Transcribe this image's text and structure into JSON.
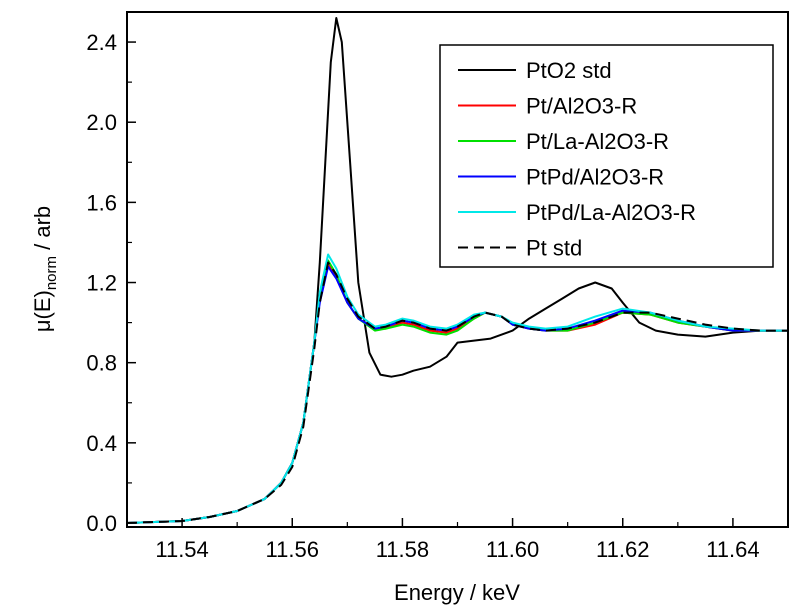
{
  "chart_data": {
    "type": "line",
    "xlabel": "Energy / keV",
    "ylabel_main": "μ(E)",
    "ylabel_sub": "norm",
    "ylabel_tail": " / arb",
    "xlim": [
      11.53,
      11.65
    ],
    "ylim": [
      -0.02,
      2.55
    ],
    "x_ticks": [
      11.54,
      11.56,
      11.58,
      11.6,
      11.62,
      11.64
    ],
    "x_tick_labels": [
      "11.54",
      "11.56",
      "11.58",
      "11.60",
      "11.62",
      "11.64"
    ],
    "y_ticks": [
      0.0,
      0.4,
      0.8,
      1.2,
      1.6,
      2.0,
      2.4
    ],
    "y_tick_labels": [
      "0.0",
      "0.4",
      "0.8",
      "1.2",
      "1.6",
      "2.0",
      "2.4"
    ],
    "legend_position": "top-right",
    "grid": false,
    "series": [
      {
        "name": "PtO2 std",
        "color": "#000000",
        "dash": "solid",
        "points": [
          [
            11.53,
            0.0
          ],
          [
            11.54,
            0.01
          ],
          [
            11.545,
            0.03
          ],
          [
            11.55,
            0.06
          ],
          [
            11.555,
            0.12
          ],
          [
            11.558,
            0.2
          ],
          [
            11.56,
            0.3
          ],
          [
            11.562,
            0.5
          ],
          [
            11.564,
            0.9
          ],
          [
            11.565,
            1.3
          ],
          [
            11.566,
            1.8
          ],
          [
            11.567,
            2.3
          ],
          [
            11.568,
            2.52
          ],
          [
            11.569,
            2.4
          ],
          [
            11.5705,
            1.8
          ],
          [
            11.572,
            1.2
          ],
          [
            11.574,
            0.85
          ],
          [
            11.576,
            0.74
          ],
          [
            11.578,
            0.73
          ],
          [
            11.58,
            0.74
          ],
          [
            11.582,
            0.76
          ],
          [
            11.585,
            0.78
          ],
          [
            11.588,
            0.83
          ],
          [
            11.59,
            0.9
          ],
          [
            11.593,
            0.91
          ],
          [
            11.596,
            0.92
          ],
          [
            11.6,
            0.96
          ],
          [
            11.603,
            1.02
          ],
          [
            11.606,
            1.07
          ],
          [
            11.609,
            1.12
          ],
          [
            11.612,
            1.17
          ],
          [
            11.615,
            1.2
          ],
          [
            11.618,
            1.17
          ],
          [
            11.62,
            1.1
          ],
          [
            11.623,
            1.0
          ],
          [
            11.626,
            0.96
          ],
          [
            11.63,
            0.94
          ],
          [
            11.635,
            0.93
          ],
          [
            11.64,
            0.95
          ],
          [
            11.645,
            0.96
          ],
          [
            11.65,
            0.96
          ]
        ]
      },
      {
        "name": "Pt/Al2O3-R",
        "color": "#ff0000",
        "dash": "solid",
        "points": [
          [
            11.53,
            0.0
          ],
          [
            11.54,
            0.01
          ],
          [
            11.545,
            0.03
          ],
          [
            11.55,
            0.06
          ],
          [
            11.555,
            0.12
          ],
          [
            11.558,
            0.2
          ],
          [
            11.56,
            0.3
          ],
          [
            11.562,
            0.5
          ],
          [
            11.564,
            0.9
          ],
          [
            11.565,
            1.12
          ],
          [
            11.5665,
            1.3
          ],
          [
            11.568,
            1.23
          ],
          [
            11.57,
            1.1
          ],
          [
            11.572,
            1.02
          ],
          [
            11.575,
            0.97
          ],
          [
            11.577,
            0.97
          ],
          [
            11.58,
            1.0
          ],
          [
            11.582,
            0.99
          ],
          [
            11.585,
            0.96
          ],
          [
            11.588,
            0.95
          ],
          [
            11.59,
            0.97
          ],
          [
            11.593,
            1.02
          ],
          [
            11.595,
            1.05
          ],
          [
            11.598,
            1.03
          ],
          [
            11.6,
            0.99
          ],
          [
            11.603,
            0.97
          ],
          [
            11.606,
            0.96
          ],
          [
            11.61,
            0.96
          ],
          [
            11.615,
            0.99
          ],
          [
            11.62,
            1.05
          ],
          [
            11.625,
            1.04
          ],
          [
            11.63,
            1.0
          ],
          [
            11.635,
            0.98
          ],
          [
            11.64,
            0.96
          ],
          [
            11.645,
            0.96
          ],
          [
            11.65,
            0.96
          ]
        ]
      },
      {
        "name": "Pt/La-Al2O3-R",
        "color": "#00e000",
        "dash": "solid",
        "points": [
          [
            11.53,
            0.0
          ],
          [
            11.54,
            0.01
          ],
          [
            11.545,
            0.03
          ],
          [
            11.55,
            0.06
          ],
          [
            11.555,
            0.12
          ],
          [
            11.558,
            0.2
          ],
          [
            11.56,
            0.3
          ],
          [
            11.562,
            0.5
          ],
          [
            11.564,
            0.9
          ],
          [
            11.565,
            1.12
          ],
          [
            11.5665,
            1.31
          ],
          [
            11.568,
            1.24
          ],
          [
            11.57,
            1.1
          ],
          [
            11.572,
            1.02
          ],
          [
            11.575,
            0.96
          ],
          [
            11.577,
            0.97
          ],
          [
            11.58,
            0.99
          ],
          [
            11.582,
            0.98
          ],
          [
            11.585,
            0.95
          ],
          [
            11.588,
            0.94
          ],
          [
            11.59,
            0.96
          ],
          [
            11.593,
            1.02
          ],
          [
            11.595,
            1.05
          ],
          [
            11.598,
            1.03
          ],
          [
            11.6,
            0.99
          ],
          [
            11.603,
            0.97
          ],
          [
            11.606,
            0.96
          ],
          [
            11.61,
            0.96
          ],
          [
            11.615,
            1.0
          ],
          [
            11.62,
            1.05
          ],
          [
            11.625,
            1.04
          ],
          [
            11.63,
            1.0
          ],
          [
            11.635,
            0.98
          ],
          [
            11.64,
            0.96
          ],
          [
            11.645,
            0.96
          ],
          [
            11.65,
            0.96
          ]
        ]
      },
      {
        "name": "PtPd/Al2O3-R",
        "color": "#0000ff",
        "dash": "solid",
        "points": [
          [
            11.53,
            0.0
          ],
          [
            11.54,
            0.01
          ],
          [
            11.545,
            0.03
          ],
          [
            11.55,
            0.06
          ],
          [
            11.555,
            0.12
          ],
          [
            11.558,
            0.2
          ],
          [
            11.56,
            0.3
          ],
          [
            11.562,
            0.5
          ],
          [
            11.564,
            0.9
          ],
          [
            11.565,
            1.1
          ],
          [
            11.5665,
            1.28
          ],
          [
            11.568,
            1.22
          ],
          [
            11.57,
            1.1
          ],
          [
            11.572,
            1.02
          ],
          [
            11.575,
            0.97
          ],
          [
            11.577,
            0.98
          ],
          [
            11.58,
            1.01
          ],
          [
            11.582,
            1.0
          ],
          [
            11.585,
            0.97
          ],
          [
            11.588,
            0.96
          ],
          [
            11.59,
            0.98
          ],
          [
            11.593,
            1.03
          ],
          [
            11.595,
            1.05
          ],
          [
            11.598,
            1.03
          ],
          [
            11.6,
            0.99
          ],
          [
            11.603,
            0.97
          ],
          [
            11.606,
            0.96
          ],
          [
            11.61,
            0.97
          ],
          [
            11.615,
            1.01
          ],
          [
            11.62,
            1.06
          ],
          [
            11.625,
            1.05
          ],
          [
            11.63,
            1.01
          ],
          [
            11.635,
            0.98
          ],
          [
            11.64,
            0.96
          ],
          [
            11.645,
            0.96
          ],
          [
            11.65,
            0.96
          ]
        ]
      },
      {
        "name": "PtPd/La-Al2O3-R",
        "color": "#00e8e8",
        "dash": "solid",
        "points": [
          [
            11.53,
            0.0
          ],
          [
            11.54,
            0.01
          ],
          [
            11.545,
            0.03
          ],
          [
            11.55,
            0.06
          ],
          [
            11.555,
            0.12
          ],
          [
            11.558,
            0.2
          ],
          [
            11.56,
            0.3
          ],
          [
            11.562,
            0.5
          ],
          [
            11.564,
            0.9
          ],
          [
            11.565,
            1.15
          ],
          [
            11.5665,
            1.34
          ],
          [
            11.568,
            1.27
          ],
          [
            11.57,
            1.13
          ],
          [
            11.572,
            1.04
          ],
          [
            11.575,
            0.98
          ],
          [
            11.577,
            0.99
          ],
          [
            11.58,
            1.02
          ],
          [
            11.582,
            1.01
          ],
          [
            11.585,
            0.98
          ],
          [
            11.588,
            0.97
          ],
          [
            11.59,
            0.99
          ],
          [
            11.593,
            1.04
          ],
          [
            11.595,
            1.05
          ],
          [
            11.598,
            1.03
          ],
          [
            11.6,
            1.0
          ],
          [
            11.603,
            0.98
          ],
          [
            11.606,
            0.97
          ],
          [
            11.61,
            0.98
          ],
          [
            11.615,
            1.03
          ],
          [
            11.62,
            1.07
          ],
          [
            11.625,
            1.05
          ],
          [
            11.63,
            1.01
          ],
          [
            11.635,
            0.98
          ],
          [
            11.64,
            0.97
          ],
          [
            11.645,
            0.96
          ],
          [
            11.65,
            0.96
          ]
        ]
      },
      {
        "name": "Pt std",
        "color": "#000000",
        "dash": "dashed",
        "points": [
          [
            11.53,
            0.0
          ],
          [
            11.54,
            0.01
          ],
          [
            11.545,
            0.03
          ],
          [
            11.55,
            0.06
          ],
          [
            11.555,
            0.12
          ],
          [
            11.558,
            0.19
          ],
          [
            11.56,
            0.28
          ],
          [
            11.562,
            0.48
          ],
          [
            11.564,
            0.87
          ],
          [
            11.565,
            1.1
          ],
          [
            11.5665,
            1.3
          ],
          [
            11.568,
            1.24
          ],
          [
            11.57,
            1.12
          ],
          [
            11.572,
            1.03
          ],
          [
            11.575,
            0.97
          ],
          [
            11.577,
            0.98
          ],
          [
            11.58,
            1.01
          ],
          [
            11.582,
            1.0
          ],
          [
            11.585,
            0.97
          ],
          [
            11.588,
            0.96
          ],
          [
            11.59,
            0.98
          ],
          [
            11.593,
            1.03
          ],
          [
            11.595,
            1.05
          ],
          [
            11.598,
            1.03
          ],
          [
            11.6,
            0.99
          ],
          [
            11.603,
            0.97
          ],
          [
            11.606,
            0.96
          ],
          [
            11.61,
            0.97
          ],
          [
            11.615,
            1.0
          ],
          [
            11.62,
            1.05
          ],
          [
            11.625,
            1.05
          ],
          [
            11.63,
            1.02
          ],
          [
            11.635,
            0.99
          ],
          [
            11.64,
            0.97
          ],
          [
            11.645,
            0.96
          ],
          [
            11.65,
            0.96
          ]
        ]
      }
    ]
  }
}
